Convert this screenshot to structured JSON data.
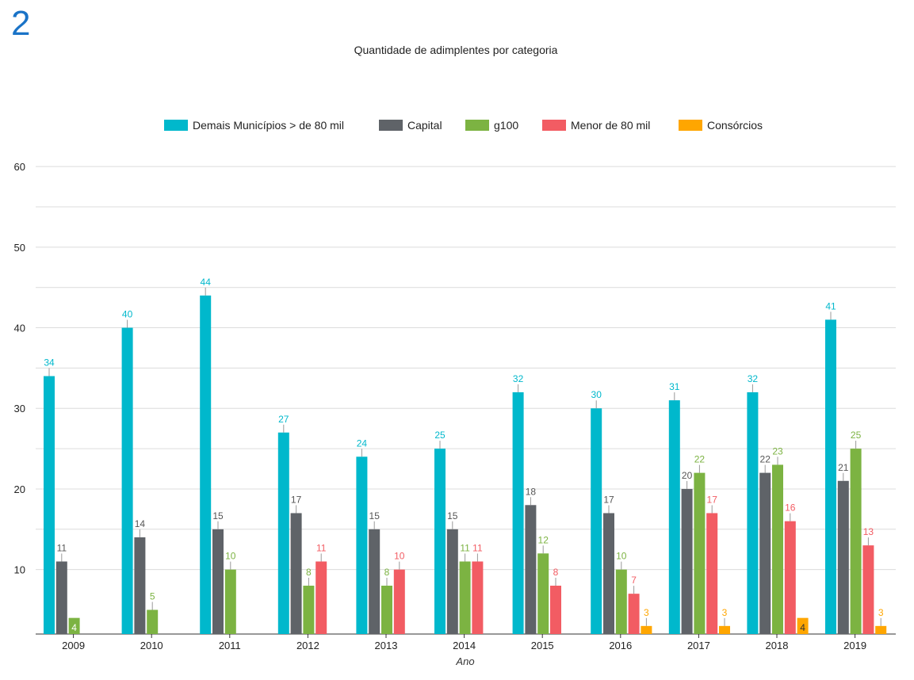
{
  "panel_number": "2",
  "chart_data": {
    "type": "bar",
    "title": "Quantidade de adimplentes por categoria",
    "xlabel": "Ano",
    "ylabel": "",
    "ylim": [
      2,
      60
    ],
    "yticks": [
      10,
      20,
      30,
      40,
      50,
      60
    ],
    "grid": true,
    "legend_position": "top",
    "categories": [
      "2009",
      "2010",
      "2011",
      "2012",
      "2013",
      "2014",
      "2015",
      "2016",
      "2017",
      "2018",
      "2019"
    ],
    "series": [
      {
        "name": "Demais Municípios > de 80 mil",
        "color": "#00b8cc",
        "values": [
          34,
          40,
          44,
          27,
          24,
          25,
          32,
          30,
          31,
          32,
          41
        ]
      },
      {
        "name": "Capital",
        "color": "#5f6368",
        "values": [
          11,
          14,
          15,
          17,
          15,
          15,
          18,
          17,
          20,
          22,
          21
        ]
      },
      {
        "name": "g100",
        "color": "#7cb342",
        "values": [
          4,
          5,
          10,
          8,
          8,
          11,
          12,
          10,
          22,
          23,
          25
        ]
      },
      {
        "name": "Menor de 80 mil",
        "color": "#f25c63",
        "values": [
          null,
          null,
          null,
          11,
          10,
          11,
          8,
          7,
          17,
          16,
          13
        ]
      },
      {
        "name": "Consórcios",
        "color": "#ffa600",
        "values": [
          null,
          null,
          null,
          null,
          null,
          null,
          null,
          3,
          3,
          4,
          3
        ]
      }
    ]
  }
}
